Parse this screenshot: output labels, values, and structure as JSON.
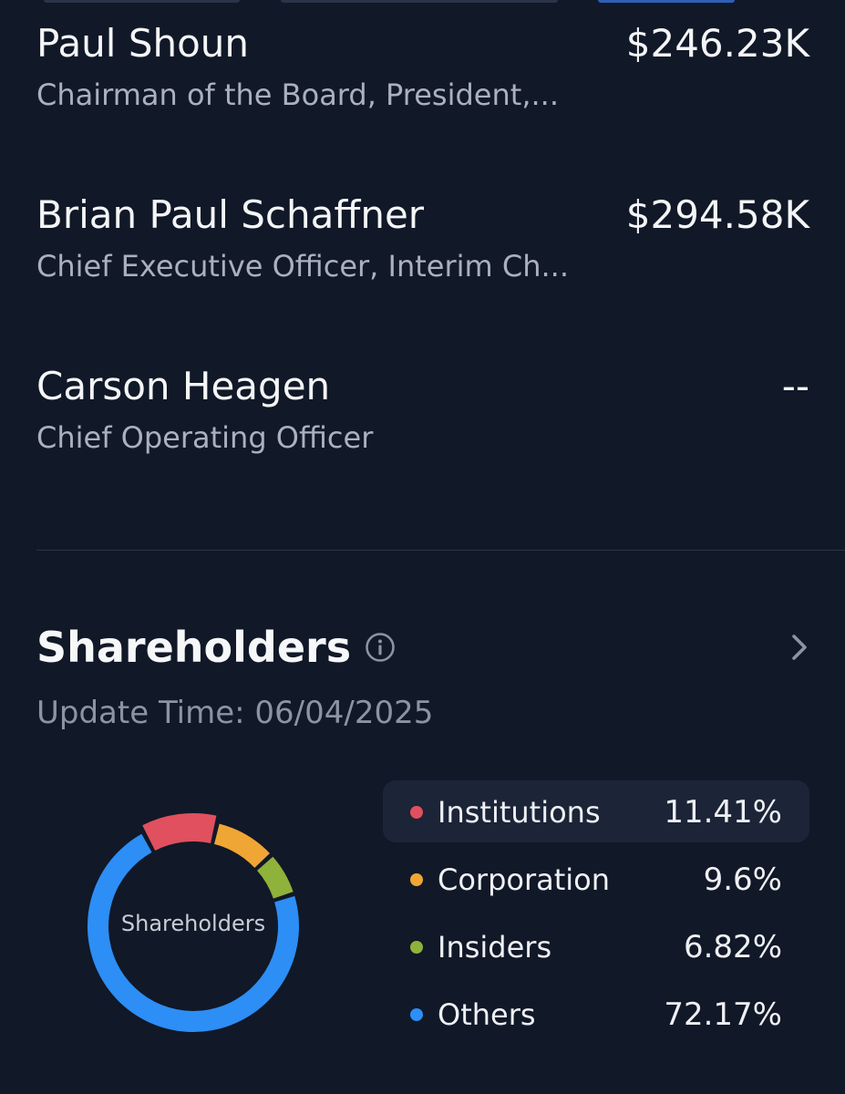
{
  "executives": [
    {
      "name": "Paul Shoun",
      "title": "Chairman of the Board, President,...",
      "pay": "$246.23K"
    },
    {
      "name": "Brian Paul Schaffner",
      "title": "Chief Executive Officer, Interim Ch...",
      "pay": "$294.58K"
    },
    {
      "name": "Carson Heagen",
      "title": "Chief Operating Officer",
      "pay": "--"
    }
  ],
  "shareholders": {
    "title": "Shareholders",
    "info_icon": "info-circle-icon",
    "chevron_icon": "chevron-right-icon",
    "update_time": "Update Time: 06/04/2025",
    "donut_center_label": "Shareholders",
    "legend": [
      {
        "label": "Institutions",
        "value": "11.41%",
        "color": "#e0505e"
      },
      {
        "label": "Corporation",
        "value": "9.6%",
        "color": "#f0a634"
      },
      {
        "label": "Insiders",
        "value": "6.82%",
        "color": "#8fb23a"
      },
      {
        "label": "Others",
        "value": "72.17%",
        "color": "#2d8ef5"
      }
    ]
  },
  "chart_data": {
    "type": "pie",
    "variant": "donut",
    "categories": [
      "Institutions",
      "Corporation",
      "Insiders",
      "Others"
    ],
    "values": [
      11.41,
      9.6,
      6.82,
      72.17
    ],
    "colors": [
      "#e0505e",
      "#f0a634",
      "#8fb23a",
      "#2d8ef5"
    ],
    "center_label": "Shareholders",
    "highlighted": "Institutions"
  }
}
